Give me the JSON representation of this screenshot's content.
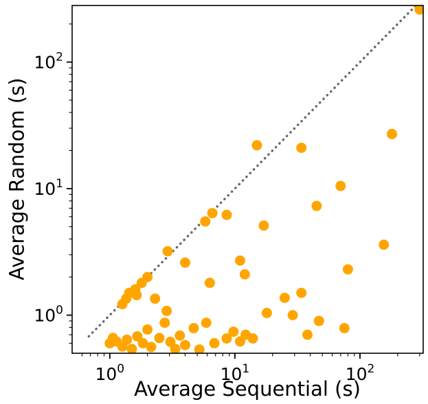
{
  "chart_data": {
    "type": "scatter",
    "title": "",
    "xlabel": "Average Sequential (s)",
    "ylabel": "Average Random (s)",
    "xscale": "log",
    "yscale": "log",
    "xlim": [
      0.5,
      320
    ],
    "ylim": [
      0.5,
      280
    ],
    "grid": false,
    "legend": "none",
    "tick_base_label": "10",
    "x_major_ticks": [
      {
        "value": 1,
        "exponent": "0"
      },
      {
        "value": 10,
        "exponent": "1"
      },
      {
        "value": 100,
        "exponent": "2"
      }
    ],
    "y_major_ticks": [
      {
        "value": 1,
        "exponent": "0"
      },
      {
        "value": 10,
        "exponent": "1"
      },
      {
        "value": 100,
        "exponent": "2"
      }
    ],
    "marker": {
      "shape": "circle",
      "color": "#FFA500",
      "radius_px": 7.5
    },
    "reference_line": {
      "meaning": "y = x identity line",
      "style": "dotted",
      "color": "#666666",
      "x_start": 0.68,
      "y_start": 0.68,
      "x_end": 295,
      "y_end": 295
    },
    "points": [
      [
        1.0,
        0.6
      ],
      [
        1.06,
        0.66
      ],
      [
        1.13,
        0.62
      ],
      [
        1.26,
        0.565
      ],
      [
        1.37,
        0.64
      ],
      [
        1.5,
        0.54
      ],
      [
        1.66,
        0.68
      ],
      [
        1.84,
        0.6
      ],
      [
        2.0,
        0.77
      ],
      [
        2.14,
        0.56
      ],
      [
        2.49,
        0.66
      ],
      [
        2.75,
        0.87
      ],
      [
        3.05,
        0.615
      ],
      [
        3.33,
        0.54
      ],
      [
        3.63,
        0.69
      ],
      [
        4.0,
        0.58
      ],
      [
        4.69,
        0.79
      ],
      [
        5.2,
        0.535
      ],
      [
        5.9,
        0.87
      ],
      [
        6.85,
        0.6
      ],
      [
        8.6,
        0.655
      ],
      [
        9.75,
        0.74
      ],
      [
        11.0,
        0.62
      ],
      [
        12.2,
        0.7
      ],
      [
        13.9,
        0.655
      ],
      [
        38.0,
        0.7
      ],
      [
        1.26,
        1.22
      ],
      [
        1.35,
        1.35
      ],
      [
        1.43,
        1.5
      ],
      [
        1.64,
        1.44
      ],
      [
        1.6,
        1.6
      ],
      [
        1.8,
        1.8
      ],
      [
        2.0,
        2.0
      ],
      [
        2.3,
        1.35
      ],
      [
        2.85,
        1.08
      ],
      [
        2.9,
        3.2
      ],
      [
        4.0,
        2.6
      ],
      [
        6.3,
        1.8
      ],
      [
        11.0,
        2.7
      ],
      [
        12.0,
        2.1
      ],
      [
        5.8,
        5.5
      ],
      [
        6.6,
        6.4
      ],
      [
        8.6,
        6.2
      ],
      [
        17.0,
        5.1
      ],
      [
        15.0,
        22.0
      ],
      [
        34.0,
        21.0
      ],
      [
        45.0,
        7.3
      ],
      [
        70.0,
        10.5
      ],
      [
        25.0,
        1.37
      ],
      [
        34.0,
        1.5
      ],
      [
        18.0,
        1.04
      ],
      [
        29.0,
        1.0
      ],
      [
        47.0,
        0.9
      ],
      [
        75.0,
        0.79
      ],
      [
        80.0,
        2.3
      ],
      [
        155.0,
        3.6
      ],
      [
        180.0,
        27.0
      ],
      [
        300.0,
        260.0
      ]
    ]
  }
}
